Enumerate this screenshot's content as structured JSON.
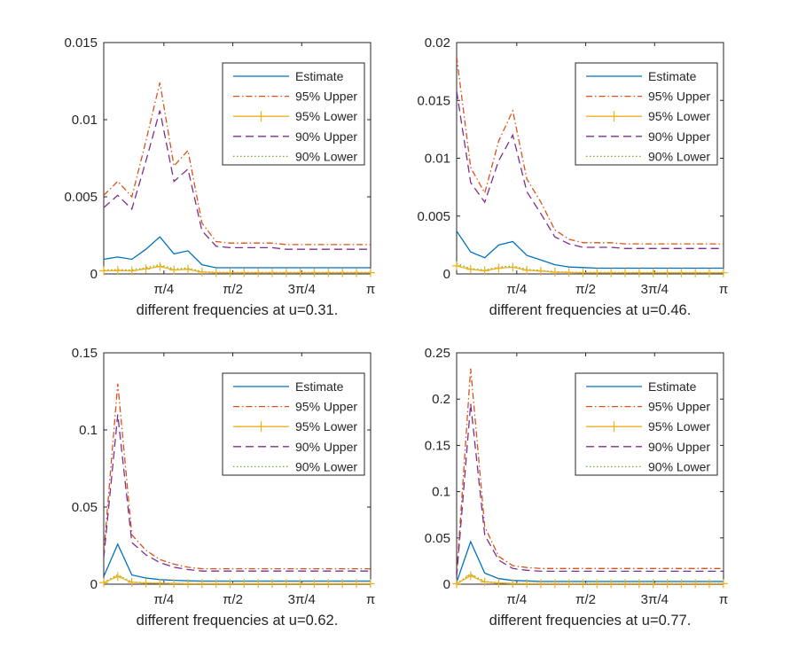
{
  "figure": {
    "background": "#ffffff"
  },
  "legend_colors": {
    "Estimate": "#0072BD",
    "95% Upper": "#D95319",
    "95% Lower": "#EDB120",
    "90% Upper": "#7E2F8E",
    "90% Lower": "#77AC30"
  },
  "chart_data": [
    {
      "type": "line",
      "title": "",
      "xlabel": "different frequencies at u=0.31.",
      "ylabel": "",
      "xlim": [
        0.1,
        3.1416
      ],
      "ylim": [
        0,
        0.015
      ],
      "yticks": [
        0,
        0.005,
        0.01,
        0.015
      ],
      "ytick_labels": [
        "0",
        "0.005",
        "0.01",
        "0.015"
      ],
      "xticks": [
        0.7854,
        1.5708,
        2.3562,
        3.1416
      ],
      "xtick_labels": [
        "π/4",
        "π/2",
        "3π/4",
        "π"
      ],
      "legend": [
        "Estimate",
        "95% Upper",
        "95% Lower",
        "90% Upper",
        "90% Lower"
      ],
      "legend_position": "top-right",
      "x": [
        0.1,
        0.26,
        0.42,
        0.58,
        0.74,
        0.9,
        1.06,
        1.22,
        1.38,
        1.54,
        1.7,
        1.86,
        2.02,
        2.18,
        2.34,
        2.5,
        2.66,
        2.82,
        2.98,
        3.14
      ],
      "series": [
        {
          "name": "Estimate",
          "values": [
            0.00095,
            0.0011,
            0.00095,
            0.0016,
            0.0024,
            0.0013,
            0.0015,
            0.0006,
            0.0004,
            0.0004,
            0.0004,
            0.0004,
            0.0004,
            0.0004,
            0.0004,
            0.0004,
            0.0004,
            0.0004,
            0.0004,
            0.0004
          ]
        },
        {
          "name": "95% Upper",
          "values": [
            0.0051,
            0.006,
            0.005,
            0.0086,
            0.0124,
            0.007,
            0.008,
            0.0033,
            0.0021,
            0.002,
            0.002,
            0.002,
            0.002,
            0.0019,
            0.0019,
            0.0019,
            0.0019,
            0.0019,
            0.0019,
            0.0019
          ]
        },
        {
          "name": "95% Lower",
          "values": [
            0.0002,
            0.00022,
            0.0002,
            0.00032,
            0.00048,
            0.00026,
            0.0003,
            0.00012,
            8e-05,
            8e-05,
            8e-05,
            8e-05,
            8e-05,
            8e-05,
            8e-05,
            8e-05,
            8e-05,
            8e-05,
            8e-05,
            8e-05
          ]
        },
        {
          "name": "90% Upper",
          "values": [
            0.0043,
            0.0051,
            0.0042,
            0.0073,
            0.0106,
            0.006,
            0.0068,
            0.0028,
            0.0018,
            0.0017,
            0.0017,
            0.0017,
            0.0017,
            0.0016,
            0.0016,
            0.0016,
            0.0016,
            0.0016,
            0.0016,
            0.0016
          ]
        },
        {
          "name": "90% Lower",
          "values": [
            0.00025,
            0.00028,
            0.00025,
            0.0004,
            0.0006,
            0.00033,
            0.00038,
            0.00015,
            0.0001,
            0.0001,
            0.0001,
            0.0001,
            0.0001,
            0.0001,
            0.0001,
            0.0001,
            0.0001,
            0.0001,
            0.0001,
            0.0001
          ]
        }
      ]
    },
    {
      "type": "line",
      "title": "",
      "xlabel": "different frequencies at u=0.46.",
      "ylabel": "",
      "xlim": [
        0.1,
        3.1416
      ],
      "ylim": [
        0,
        0.02
      ],
      "yticks": [
        0,
        0.005,
        0.01,
        0.015,
        0.02
      ],
      "ytick_labels": [
        "0",
        "0.005",
        "0.01",
        "0.015",
        "0.02"
      ],
      "xticks": [
        0.7854,
        1.5708,
        2.3562,
        3.1416
      ],
      "xtick_labels": [
        "π/4",
        "π/2",
        "3π/4",
        "π"
      ],
      "legend": [
        "Estimate",
        "95% Upper",
        "95% Lower",
        "90% Upper",
        "90% Lower"
      ],
      "legend_position": "top-right",
      "x": [
        0.1,
        0.26,
        0.42,
        0.58,
        0.74,
        0.9,
        1.06,
        1.22,
        1.38,
        1.54,
        1.7,
        1.86,
        2.02,
        2.18,
        2.34,
        2.5,
        2.66,
        2.82,
        2.98,
        3.14
      ],
      "series": [
        {
          "name": "Estimate",
          "values": [
            0.0037,
            0.0019,
            0.0014,
            0.0025,
            0.0028,
            0.0016,
            0.0012,
            0.0008,
            0.0006,
            0.00055,
            0.0005,
            0.0005,
            0.0005,
            0.0005,
            0.0005,
            0.0005,
            0.0005,
            0.0005,
            0.0005,
            0.0005
          ]
        },
        {
          "name": "95% Upper",
          "values": [
            0.0188,
            0.0092,
            0.007,
            0.0115,
            0.0141,
            0.0082,
            0.0062,
            0.0038,
            0.003,
            0.0027,
            0.0027,
            0.0027,
            0.0026,
            0.0026,
            0.0026,
            0.0026,
            0.0026,
            0.0026,
            0.0026,
            0.0026
          ]
        },
        {
          "name": "95% Lower",
          "values": [
            0.0007,
            0.0004,
            0.00028,
            0.0005,
            0.00058,
            0.00032,
            0.00025,
            0.00015,
            0.00012,
            0.0001,
            0.0001,
            0.0001,
            0.0001,
            0.0001,
            0.0001,
            0.0001,
            0.0001,
            0.0001,
            0.0001,
            0.0001
          ]
        },
        {
          "name": "90% Upper",
          "values": [
            0.0158,
            0.0079,
            0.0062,
            0.0098,
            0.012,
            0.0071,
            0.0052,
            0.0032,
            0.0026,
            0.0023,
            0.0023,
            0.0023,
            0.0022,
            0.0022,
            0.0022,
            0.0022,
            0.0022,
            0.0022,
            0.0022,
            0.0022
          ]
        },
        {
          "name": "90% Lower",
          "values": [
            0.0009,
            0.00046,
            0.00034,
            0.0006,
            0.00068,
            0.0004,
            0.0003,
            0.00019,
            0.00015,
            0.00013,
            0.00013,
            0.00013,
            0.00012,
            0.00012,
            0.00012,
            0.00012,
            0.00012,
            0.00012,
            0.00012,
            0.00012
          ]
        }
      ]
    },
    {
      "type": "line",
      "title": "",
      "xlabel": "different frequencies at u=0.62.",
      "ylabel": "",
      "xlim": [
        0.1,
        3.1416
      ],
      "ylim": [
        0,
        0.15
      ],
      "yticks": [
        0,
        0.05,
        0.1,
        0.15
      ],
      "ytick_labels": [
        "0",
        "0.05",
        "0.1",
        "0.15"
      ],
      "xticks": [
        0.7854,
        1.5708,
        2.3562,
        3.1416
      ],
      "xtick_labels": [
        "π/4",
        "π/2",
        "3π/4",
        "π"
      ],
      "legend": [
        "Estimate",
        "95% Upper",
        "95% Lower",
        "90% Upper",
        "90% Lower"
      ],
      "legend_position": "top-right",
      "x": [
        0.1,
        0.26,
        0.42,
        0.58,
        0.74,
        0.9,
        1.06,
        1.22,
        1.38,
        1.54,
        1.7,
        1.86,
        2.02,
        2.18,
        2.34,
        2.5,
        2.66,
        2.82,
        2.98,
        3.14
      ],
      "series": [
        {
          "name": "Estimate",
          "values": [
            0.005,
            0.026,
            0.006,
            0.004,
            0.003,
            0.0025,
            0.0022,
            0.002,
            0.002,
            0.002,
            0.002,
            0.002,
            0.002,
            0.002,
            0.002,
            0.002,
            0.002,
            0.002,
            0.002,
            0.002
          ]
        },
        {
          "name": "95% Upper",
          "values": [
            0.02,
            0.13,
            0.032,
            0.022,
            0.016,
            0.013,
            0.011,
            0.01,
            0.01,
            0.01,
            0.01,
            0.01,
            0.01,
            0.01,
            0.01,
            0.01,
            0.01,
            0.01,
            0.01,
            0.01
          ]
        },
        {
          "name": "95% Lower",
          "values": [
            0.001,
            0.005,
            0.0012,
            0.0008,
            0.0006,
            0.0005,
            0.0004,
            0.0004,
            0.0004,
            0.0004,
            0.0004,
            0.0004,
            0.0004,
            0.0004,
            0.0004,
            0.0004,
            0.0004,
            0.0004,
            0.0004,
            0.0004
          ]
        },
        {
          "name": "90% Upper",
          "values": [
            0.017,
            0.11,
            0.027,
            0.019,
            0.014,
            0.011,
            0.0095,
            0.0085,
            0.0085,
            0.0085,
            0.0085,
            0.0085,
            0.0085,
            0.0085,
            0.0085,
            0.0085,
            0.0085,
            0.0085,
            0.0085,
            0.0085
          ]
        },
        {
          "name": "90% Lower",
          "values": [
            0.0012,
            0.006,
            0.0014,
            0.001,
            0.0007,
            0.0006,
            0.0005,
            0.0005,
            0.0005,
            0.0005,
            0.0005,
            0.0005,
            0.0005,
            0.0005,
            0.0005,
            0.0005,
            0.0005,
            0.0005,
            0.0005,
            0.0005
          ]
        }
      ]
    },
    {
      "type": "line",
      "title": "",
      "xlabel": "different frequencies at u=0.77.",
      "ylabel": "",
      "xlim": [
        0.1,
        3.1416
      ],
      "ylim": [
        0,
        0.25
      ],
      "yticks": [
        0,
        0.05,
        0.1,
        0.15,
        0.2,
        0.25
      ],
      "ytick_labels": [
        "0",
        "0.05",
        "0.1",
        "0.15",
        "0.2",
        "0.25"
      ],
      "xticks": [
        0.7854,
        1.5708,
        2.3562,
        3.1416
      ],
      "xtick_labels": [
        "π/4",
        "π/2",
        "3π/4",
        "π"
      ],
      "legend": [
        "Estimate",
        "95% Upper",
        "95% Lower",
        "90% Upper",
        "90% Lower"
      ],
      "legend_position": "top-right",
      "x": [
        0.1,
        0.26,
        0.42,
        0.58,
        0.74,
        0.9,
        1.06,
        1.22,
        1.38,
        1.54,
        1.7,
        1.86,
        2.02,
        2.18,
        2.34,
        2.5,
        2.66,
        2.82,
        2.98,
        3.14
      ],
      "series": [
        {
          "name": "Estimate",
          "values": [
            0.002,
            0.046,
            0.012,
            0.006,
            0.004,
            0.0035,
            0.003,
            0.003,
            0.003,
            0.003,
            0.003,
            0.003,
            0.003,
            0.003,
            0.003,
            0.003,
            0.003,
            0.003,
            0.003,
            0.003
          ]
        },
        {
          "name": "95% Upper",
          "values": [
            0.01,
            0.233,
            0.062,
            0.03,
            0.02,
            0.018,
            0.017,
            0.017,
            0.017,
            0.017,
            0.017,
            0.017,
            0.017,
            0.017,
            0.017,
            0.017,
            0.017,
            0.017,
            0.017,
            0.017
          ]
        },
        {
          "name": "95% Lower",
          "values": [
            0.0005,
            0.009,
            0.0025,
            0.0012,
            0.0008,
            0.0007,
            0.0006,
            0.0006,
            0.0006,
            0.0006,
            0.0006,
            0.0006,
            0.0006,
            0.0006,
            0.0006,
            0.0006,
            0.0006,
            0.0006,
            0.0006,
            0.0006
          ]
        },
        {
          "name": "90% Upper",
          "values": [
            0.008,
            0.195,
            0.053,
            0.026,
            0.017,
            0.015,
            0.014,
            0.014,
            0.014,
            0.014,
            0.014,
            0.014,
            0.014,
            0.014,
            0.014,
            0.014,
            0.014,
            0.014,
            0.014,
            0.014
          ]
        },
        {
          "name": "90% Lower",
          "values": [
            0.0007,
            0.011,
            0.003,
            0.0015,
            0.001,
            0.0009,
            0.0008,
            0.0008,
            0.0008,
            0.0008,
            0.0008,
            0.0008,
            0.0008,
            0.0008,
            0.0008,
            0.0008,
            0.0008,
            0.0008,
            0.0008,
            0.0008
          ]
        }
      ]
    }
  ]
}
